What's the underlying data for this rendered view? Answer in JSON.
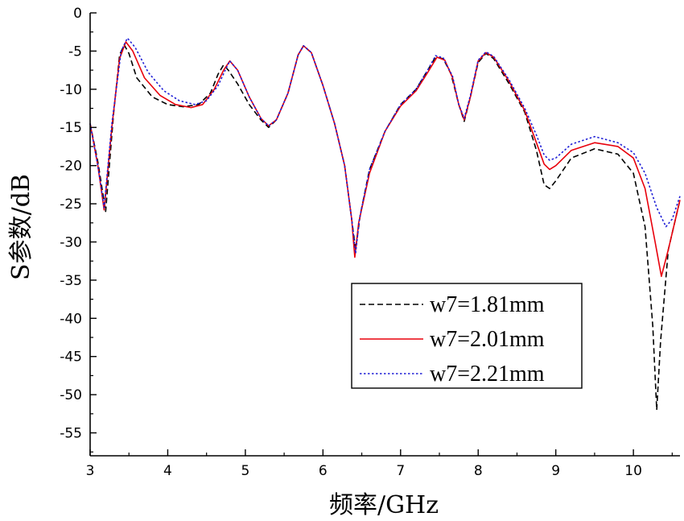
{
  "chart_data": {
    "type": "line",
    "xlabel": "频率/GHz",
    "ylabel": "S参数/dB",
    "xlim": [
      3,
      10.6
    ],
    "ylim": [
      -58,
      0
    ],
    "x_ticks": [
      "3",
      "4",
      "5",
      "6",
      "7",
      "8",
      "9",
      "10"
    ],
    "y_ticks": [
      "0",
      "-5",
      "-10",
      "-15",
      "-20",
      "-25",
      "-30",
      "-35",
      "-40",
      "-45",
      "-50",
      "-55"
    ],
    "legend_position": "lower-right",
    "grid": false,
    "series": [
      {
        "name": "w7=1.81mm",
        "color": "#000000",
        "style": "dashed",
        "points": [
          [
            3.0,
            -14.5
          ],
          [
            3.1,
            -19.5
          ],
          [
            3.2,
            -26.0
          ],
          [
            3.3,
            -13.5
          ],
          [
            3.38,
            -5.5
          ],
          [
            3.44,
            -4.2
          ],
          [
            3.5,
            -5.3
          ],
          [
            3.6,
            -8.5
          ],
          [
            3.8,
            -11.0
          ],
          [
            4.0,
            -12.0
          ],
          [
            4.2,
            -12.3
          ],
          [
            4.4,
            -12.0
          ],
          [
            4.55,
            -10.5
          ],
          [
            4.65,
            -8.0
          ],
          [
            4.72,
            -6.8
          ],
          [
            4.78,
            -7.5
          ],
          [
            4.9,
            -9.3
          ],
          [
            5.05,
            -12.0
          ],
          [
            5.2,
            -14.0
          ],
          [
            5.3,
            -15.0
          ],
          [
            5.4,
            -14.0
          ],
          [
            5.55,
            -10.5
          ],
          [
            5.68,
            -5.5
          ],
          [
            5.75,
            -4.3
          ],
          [
            5.85,
            -5.2
          ],
          [
            6.0,
            -9.5
          ],
          [
            6.15,
            -14.5
          ],
          [
            6.28,
            -20.0
          ],
          [
            6.37,
            -27.0
          ],
          [
            6.42,
            -31.0
          ],
          [
            6.48,
            -26.5
          ],
          [
            6.6,
            -20.5
          ],
          [
            6.8,
            -15.5
          ],
          [
            7.0,
            -12.0
          ],
          [
            7.2,
            -10.0
          ],
          [
            7.35,
            -7.5
          ],
          [
            7.45,
            -5.8
          ],
          [
            7.55,
            -6.0
          ],
          [
            7.65,
            -8.0
          ],
          [
            7.75,
            -12.0
          ],
          [
            7.82,
            -14.2
          ],
          [
            7.9,
            -11.0
          ],
          [
            8.0,
            -6.5
          ],
          [
            8.1,
            -5.3
          ],
          [
            8.2,
            -6.0
          ],
          [
            8.4,
            -9.3
          ],
          [
            8.6,
            -13.0
          ],
          [
            8.75,
            -18.0
          ],
          [
            8.85,
            -22.5
          ],
          [
            8.92,
            -23.0
          ],
          [
            9.0,
            -22.0
          ],
          [
            9.2,
            -19.0
          ],
          [
            9.5,
            -17.8
          ],
          [
            9.8,
            -18.5
          ],
          [
            10.0,
            -21.0
          ],
          [
            10.15,
            -28.0
          ],
          [
            10.25,
            -41.0
          ],
          [
            10.3,
            -52.0
          ],
          [
            10.35,
            -43.0
          ],
          [
            10.45,
            -31.0
          ],
          [
            10.6,
            -24.5
          ]
        ]
      },
      {
        "name": "w7=2.01mm",
        "color": "#e8000b",
        "style": "solid",
        "points": [
          [
            3.0,
            -14.5
          ],
          [
            3.1,
            -20.0
          ],
          [
            3.18,
            -25.8
          ],
          [
            3.28,
            -15.0
          ],
          [
            3.38,
            -6.0
          ],
          [
            3.46,
            -3.8
          ],
          [
            3.55,
            -5.0
          ],
          [
            3.7,
            -8.5
          ],
          [
            3.9,
            -10.8
          ],
          [
            4.1,
            -12.0
          ],
          [
            4.3,
            -12.4
          ],
          [
            4.45,
            -12.0
          ],
          [
            4.6,
            -10.0
          ],
          [
            4.72,
            -7.5
          ],
          [
            4.8,
            -6.3
          ],
          [
            4.9,
            -7.5
          ],
          [
            5.05,
            -11.0
          ],
          [
            5.2,
            -13.8
          ],
          [
            5.3,
            -14.8
          ],
          [
            5.4,
            -14.0
          ],
          [
            5.55,
            -10.5
          ],
          [
            5.68,
            -5.5
          ],
          [
            5.75,
            -4.3
          ],
          [
            5.85,
            -5.2
          ],
          [
            6.0,
            -9.5
          ],
          [
            6.15,
            -14.5
          ],
          [
            6.28,
            -20.0
          ],
          [
            6.37,
            -27.0
          ],
          [
            6.41,
            -32.0
          ],
          [
            6.46,
            -27.5
          ],
          [
            6.6,
            -21.0
          ],
          [
            6.8,
            -15.5
          ],
          [
            7.0,
            -12.2
          ],
          [
            7.2,
            -10.2
          ],
          [
            7.35,
            -7.8
          ],
          [
            7.47,
            -5.8
          ],
          [
            7.57,
            -6.2
          ],
          [
            7.67,
            -8.5
          ],
          [
            7.75,
            -12.0
          ],
          [
            7.82,
            -14.0
          ],
          [
            7.9,
            -11.0
          ],
          [
            8.0,
            -6.3
          ],
          [
            8.1,
            -5.2
          ],
          [
            8.2,
            -5.8
          ],
          [
            8.4,
            -9.0
          ],
          [
            8.6,
            -12.8
          ],
          [
            8.75,
            -17.0
          ],
          [
            8.85,
            -19.8
          ],
          [
            8.92,
            -20.5
          ],
          [
            9.0,
            -20.0
          ],
          [
            9.2,
            -18.0
          ],
          [
            9.5,
            -17.0
          ],
          [
            9.8,
            -17.5
          ],
          [
            10.0,
            -19.0
          ],
          [
            10.15,
            -23.0
          ],
          [
            10.28,
            -30.0
          ],
          [
            10.36,
            -34.5
          ],
          [
            10.45,
            -31.0
          ],
          [
            10.6,
            -24.5
          ]
        ]
      },
      {
        "name": "w7=2.21mm",
        "color": "#1f1fd6",
        "style": "dotted",
        "points": [
          [
            3.0,
            -14.5
          ],
          [
            3.1,
            -20.0
          ],
          [
            3.18,
            -25.5
          ],
          [
            3.28,
            -14.5
          ],
          [
            3.4,
            -5.0
          ],
          [
            3.48,
            -3.3
          ],
          [
            3.58,
            -4.5
          ],
          [
            3.75,
            -7.8
          ],
          [
            3.95,
            -10.2
          ],
          [
            4.15,
            -11.5
          ],
          [
            4.35,
            -12.0
          ],
          [
            4.5,
            -11.5
          ],
          [
            4.65,
            -9.5
          ],
          [
            4.75,
            -7.3
          ],
          [
            4.8,
            -6.3
          ],
          [
            4.9,
            -7.5
          ],
          [
            5.05,
            -11.0
          ],
          [
            5.2,
            -13.8
          ],
          [
            5.3,
            -14.8
          ],
          [
            5.4,
            -14.0
          ],
          [
            5.55,
            -10.5
          ],
          [
            5.68,
            -5.5
          ],
          [
            5.75,
            -4.3
          ],
          [
            5.85,
            -5.2
          ],
          [
            6.0,
            -9.5
          ],
          [
            6.15,
            -14.5
          ],
          [
            6.28,
            -20.0
          ],
          [
            6.37,
            -27.0
          ],
          [
            6.42,
            -31.5
          ],
          [
            6.47,
            -27.0
          ],
          [
            6.6,
            -20.5
          ],
          [
            6.8,
            -15.5
          ],
          [
            7.0,
            -12.0
          ],
          [
            7.2,
            -10.0
          ],
          [
            7.35,
            -7.5
          ],
          [
            7.45,
            -5.6
          ],
          [
            7.55,
            -5.9
          ],
          [
            7.67,
            -8.3
          ],
          [
            7.75,
            -12.0
          ],
          [
            7.82,
            -13.8
          ],
          [
            7.9,
            -10.8
          ],
          [
            8.0,
            -6.2
          ],
          [
            8.1,
            -5.1
          ],
          [
            8.2,
            -5.7
          ],
          [
            8.4,
            -8.8
          ],
          [
            8.6,
            -12.5
          ],
          [
            8.75,
            -16.0
          ],
          [
            8.85,
            -18.6
          ],
          [
            8.92,
            -19.3
          ],
          [
            9.0,
            -19.0
          ],
          [
            9.2,
            -17.2
          ],
          [
            9.5,
            -16.2
          ],
          [
            9.8,
            -17.0
          ],
          [
            10.0,
            -18.3
          ],
          [
            10.15,
            -21.0
          ],
          [
            10.3,
            -25.5
          ],
          [
            10.42,
            -28.0
          ],
          [
            10.5,
            -27.0
          ],
          [
            10.6,
            -24.0
          ]
        ]
      }
    ]
  }
}
